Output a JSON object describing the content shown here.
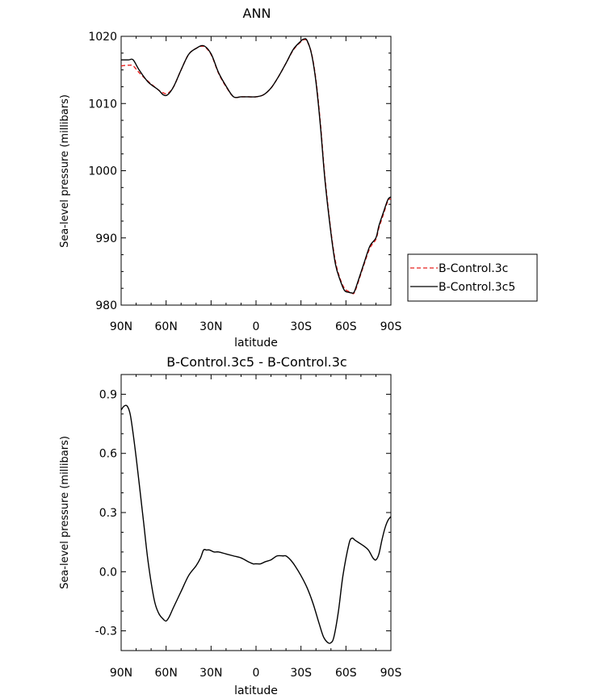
{
  "chart_data": [
    {
      "type": "line",
      "title": "ANN",
      "xlabel": "latitude",
      "ylabel": "Sea-level pressure (millibars)",
      "xlim": [
        90,
        -90
      ],
      "ylim": [
        980,
        1020
      ],
      "xticks": [
        "90N",
        "60N",
        "30N",
        "0",
        "30S",
        "60S",
        "90S"
      ],
      "xtick_values": [
        90,
        60,
        30,
        0,
        -30,
        -60,
        -90
      ],
      "yticks": [
        "980",
        "990",
        "1000",
        "1010",
        "1020"
      ],
      "ytick_values": [
        980,
        990,
        1000,
        1010,
        1020
      ],
      "legend_position": "right",
      "series": [
        {
          "name": "B-Control.3c",
          "color": "#e8201e",
          "dash": "dashed",
          "x": [
            90,
            85,
            82,
            78,
            72,
            65,
            62,
            59,
            55,
            50,
            45,
            40,
            35,
            30,
            25,
            20,
            15,
            10,
            5,
            0,
            -5,
            -10,
            -15,
            -20,
            -25,
            -30,
            -32,
            -34,
            -37,
            -40,
            -43,
            -46,
            -50,
            -53,
            -56,
            -59,
            -62,
            -64,
            -65,
            -66,
            -68,
            -72,
            -76,
            -80,
            -82,
            -85,
            -88,
            -90
          ],
          "y": [
            1015.6,
            1015.7,
            1015.6,
            1014.6,
            1013.3,
            1012.0,
            1011.6,
            1011.5,
            1012.5,
            1015.0,
            1017.3,
            1018.2,
            1018.5,
            1017.3,
            1014.5,
            1012.5,
            1011.0,
            1011.0,
            1011.0,
            1011.0,
            1011.3,
            1012.3,
            1014.0,
            1016.0,
            1018.0,
            1019.2,
            1019.5,
            1019.3,
            1017.5,
            1013.5,
            1007.0,
            999.0,
            991.0,
            986.5,
            984.0,
            982.5,
            982.0,
            981.8,
            981.7,
            982.0,
            983.3,
            986.0,
            988.5,
            989.8,
            991.5,
            993.5,
            995.5,
            995.8
          ]
        },
        {
          "name": "B-Control.3c5",
          "color": "#000000",
          "dash": "solid",
          "x": [
            90,
            85,
            82,
            78,
            72,
            65,
            62,
            59,
            55,
            50,
            45,
            40,
            35,
            30,
            25,
            20,
            15,
            10,
            5,
            0,
            -5,
            -10,
            -15,
            -20,
            -25,
            -30,
            -32,
            -34,
            -37,
            -40,
            -43,
            -46,
            -50,
            -53,
            -56,
            -59,
            -62,
            -64,
            -65,
            -66,
            -68,
            -72,
            -76,
            -80,
            -82,
            -85,
            -88,
            -90
          ],
          "y": [
            1016.5,
            1016.5,
            1016.5,
            1015.0,
            1013.2,
            1012.0,
            1011.3,
            1011.3,
            1012.5,
            1015.0,
            1017.3,
            1018.2,
            1018.6,
            1017.4,
            1014.6,
            1012.6,
            1011.0,
            1011.0,
            1011.0,
            1011.0,
            1011.3,
            1012.3,
            1014.0,
            1016.0,
            1018.1,
            1019.3,
            1019.6,
            1019.4,
            1017.4,
            1013.2,
            1006.6,
            998.6,
            990.7,
            986.1,
            983.8,
            982.2,
            981.9,
            981.8,
            981.8,
            982.2,
            983.5,
            986.2,
            988.8,
            990.0,
            991.8,
            993.8,
            995.7,
            996.1
          ]
        }
      ]
    },
    {
      "type": "line",
      "title": "B-Control.3c5 - B-Control.3c",
      "xlabel": "latitude",
      "ylabel": "Sea-level pressure (millibars)",
      "xlim": [
        90,
        -90
      ],
      "ylim": [
        -0.4,
        1.0
      ],
      "xticks": [
        "90N",
        "60N",
        "30N",
        "0",
        "30S",
        "60S",
        "90S"
      ],
      "xtick_values": [
        90,
        60,
        30,
        0,
        -30,
        -60,
        -90
      ],
      "yticks": [
        "-0.3",
        "0.0",
        "0.3",
        "0.6",
        "0.9"
      ],
      "ytick_values": [
        -0.3,
        0.0,
        0.3,
        0.6,
        0.9
      ],
      "series": [
        {
          "color": "#000000",
          "dash": "solid",
          "x": [
            90,
            88,
            86,
            84,
            82,
            80,
            78,
            75,
            72,
            68,
            65,
            62,
            60,
            58,
            55,
            50,
            45,
            40,
            37,
            35,
            33,
            31,
            28,
            25,
            20,
            15,
            10,
            5,
            2,
            0,
            -3,
            -6,
            -10,
            -14,
            -18,
            -20,
            -23,
            -26,
            -30,
            -34,
            -38,
            -42,
            -45,
            -48,
            -50,
            -52,
            -55,
            -58,
            -62,
            -64,
            -66,
            -68,
            -70,
            -72,
            -75,
            -78,
            -80,
            -82,
            -84,
            -86,
            -88,
            -90
          ],
          "y": [
            0.82,
            0.84,
            0.84,
            0.8,
            0.7,
            0.58,
            0.45,
            0.25,
            0.05,
            -0.14,
            -0.21,
            -0.24,
            -0.25,
            -0.23,
            -0.18,
            -0.1,
            -0.02,
            0.03,
            0.07,
            0.11,
            0.11,
            0.11,
            0.1,
            0.1,
            0.09,
            0.08,
            0.07,
            0.05,
            0.04,
            0.04,
            0.04,
            0.05,
            0.06,
            0.08,
            0.08,
            0.08,
            0.06,
            0.03,
            -0.02,
            -0.08,
            -0.16,
            -0.26,
            -0.33,
            -0.36,
            -0.36,
            -0.33,
            -0.2,
            -0.02,
            0.14,
            0.17,
            0.16,
            0.15,
            0.14,
            0.13,
            0.11,
            0.07,
            0.06,
            0.09,
            0.16,
            0.22,
            0.26,
            0.28
          ]
        }
      ]
    }
  ]
}
